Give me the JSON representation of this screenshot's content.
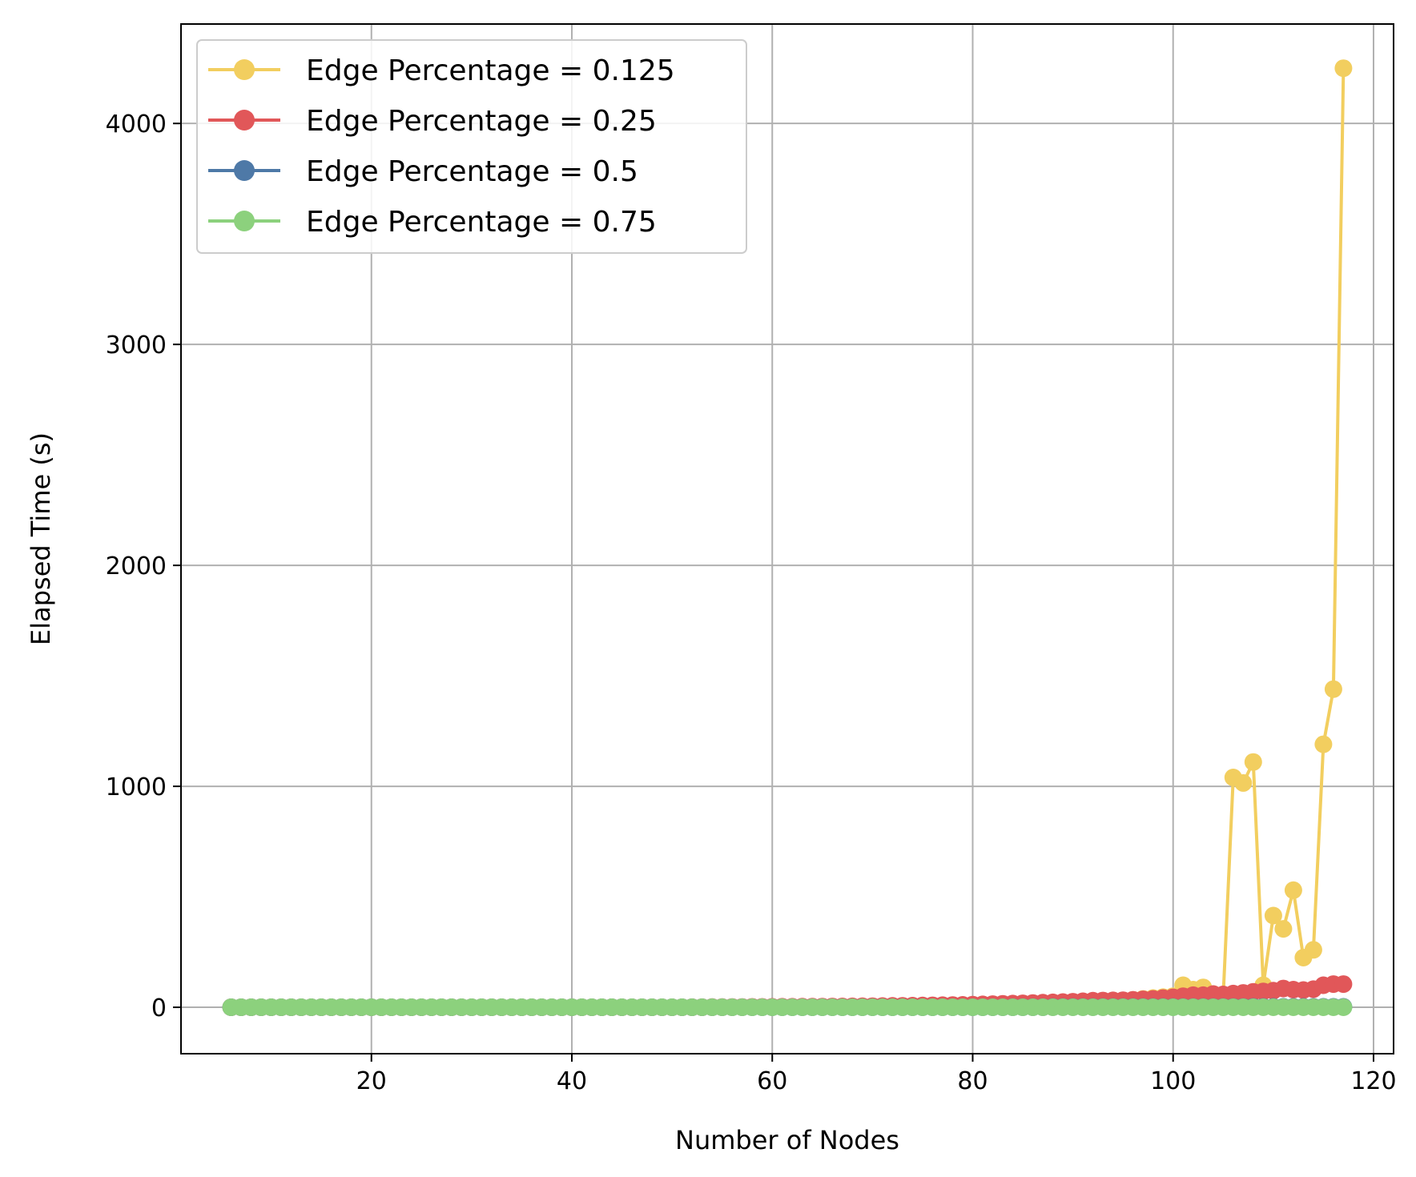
{
  "chart_data": {
    "type": "line",
    "xlabel": "Number of Nodes",
    "ylabel": "Elapsed Time (s)",
    "xlim": [
      1,
      122
    ],
    "ylim": [
      -210,
      4450
    ],
    "xticks": [
      20,
      40,
      60,
      80,
      100,
      120
    ],
    "yticks": [
      0,
      1000,
      2000,
      3000,
      4000
    ],
    "grid": true,
    "legend_position": "top-left",
    "series": [
      {
        "name": "Edge Percentage = 0.125",
        "color": "#F2CE5F",
        "x": [
          6,
          10,
          20,
          30,
          40,
          50,
          60,
          70,
          80,
          90,
          95,
          100,
          101,
          102,
          103,
          104,
          105,
          106,
          107,
          108,
          109,
          110,
          111,
          112,
          113,
          114,
          115,
          116,
          117
        ],
        "y": [
          0,
          0,
          0,
          0,
          0,
          0,
          1,
          2,
          5,
          15,
          30,
          50,
          100,
          80,
          90,
          60,
          50,
          1040,
          1015,
          1110,
          100,
          415,
          355,
          530,
          225,
          260,
          1190,
          1440,
          4250
        ]
      },
      {
        "name": "Edge Percentage = 0.25",
        "color": "#E15759",
        "x": [
          6,
          10,
          20,
          30,
          40,
          50,
          60,
          65,
          70,
          75,
          80,
          85,
          90,
          92,
          95,
          98,
          100,
          101,
          102,
          103,
          104,
          105,
          106,
          107,
          108,
          109,
          110,
          111,
          112,
          113,
          114,
          115,
          116,
          117
        ],
        "y": [
          0,
          0,
          0,
          0,
          0,
          0,
          2,
          3,
          5,
          8,
          12,
          18,
          25,
          30,
          32,
          38,
          45,
          50,
          55,
          55,
          60,
          58,
          62,
          65,
          70,
          72,
          75,
          85,
          80,
          78,
          82,
          100,
          105,
          105
        ]
      },
      {
        "name": "Edge Percentage = 0.5",
        "color": "#4E79A7",
        "x": [
          6,
          10,
          20,
          30,
          40,
          50,
          60,
          70,
          80,
          90,
          100,
          105,
          110,
          115,
          117
        ],
        "y": [
          0,
          0,
          0,
          0,
          0,
          0,
          0,
          0,
          0,
          1,
          1,
          1,
          2,
          2,
          2
        ]
      },
      {
        "name": "Edge Percentage = 0.75",
        "color": "#8CD17D",
        "x": [
          6,
          10,
          20,
          30,
          40,
          50,
          60,
          70,
          80,
          90,
          100,
          105,
          110,
          115,
          117
        ],
        "y": [
          0,
          0,
          0,
          0,
          0,
          0,
          0,
          0,
          0,
          0,
          0,
          0,
          0,
          0,
          0
        ]
      }
    ]
  }
}
